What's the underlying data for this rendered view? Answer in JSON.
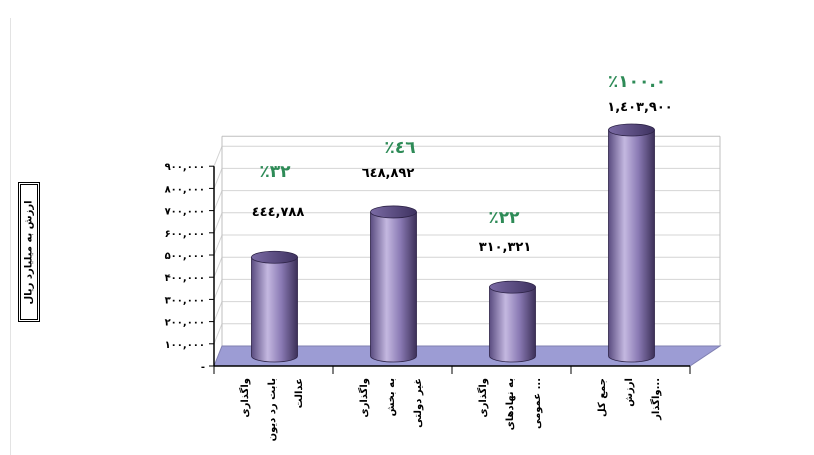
{
  "chart_data": {
    "type": "bar",
    "ylabel": "ارزش به میلیارد ریال",
    "ylim": [
      0,
      900000
    ],
    "yticks": [
      {
        "value": 0,
        "label": "-"
      },
      {
        "value": 100000,
        "label": "۱۰۰,۰۰۰"
      },
      {
        "value": 200000,
        "label": "۲۰۰,۰۰۰"
      },
      {
        "value": 300000,
        "label": "۳۰۰,۰۰۰"
      },
      {
        "value": 400000,
        "label": "۴۰۰,۰۰۰"
      },
      {
        "value": 500000,
        "label": "۵۰۰,۰۰۰"
      },
      {
        "value": 600000,
        "label": "۶۰۰,۰۰۰"
      },
      {
        "value": 700000,
        "label": "۷۰۰,۰۰۰"
      },
      {
        "value": 800000,
        "label": "۸۰۰,۰۰۰"
      },
      {
        "value": 900000,
        "label": "۹۰۰,۰۰۰"
      }
    ],
    "categories": [
      [
        "واگذاری",
        "بابت رد دیون",
        "عدالت"
      ],
      [
        "واگذاری",
        "به بخش",
        "غیر دولتی"
      ],
      [
        "واگذاری",
        "به نهادهای",
        "عمومی ..."
      ],
      [
        "جمع کل",
        "ارزش",
        "واگذار..."
      ]
    ],
    "values": [
      444788,
      648892,
      310321,
      1403900
    ],
    "value_labels": [
      "٤٤٤,٧٨٨",
      "٦٤٨,٨٩٢",
      "۳۱۰,۳۲۱",
      "۱,٤٠٣,٩٠٠"
    ],
    "percent_labels": [
      "٪۳۲",
      "٪٤٦",
      "٪۲۲",
      "٪۱۰۰.۰"
    ],
    "colors": {
      "bar_light": "#c4b8e0",
      "bar_mid": "#8a7ab4",
      "bar_dark": "#4a3d6e",
      "floor": "#9c9cd4",
      "percent_text": "#2e8b57",
      "grid": "#d4d4d4"
    },
    "grid": true,
    "legend": "none"
  }
}
